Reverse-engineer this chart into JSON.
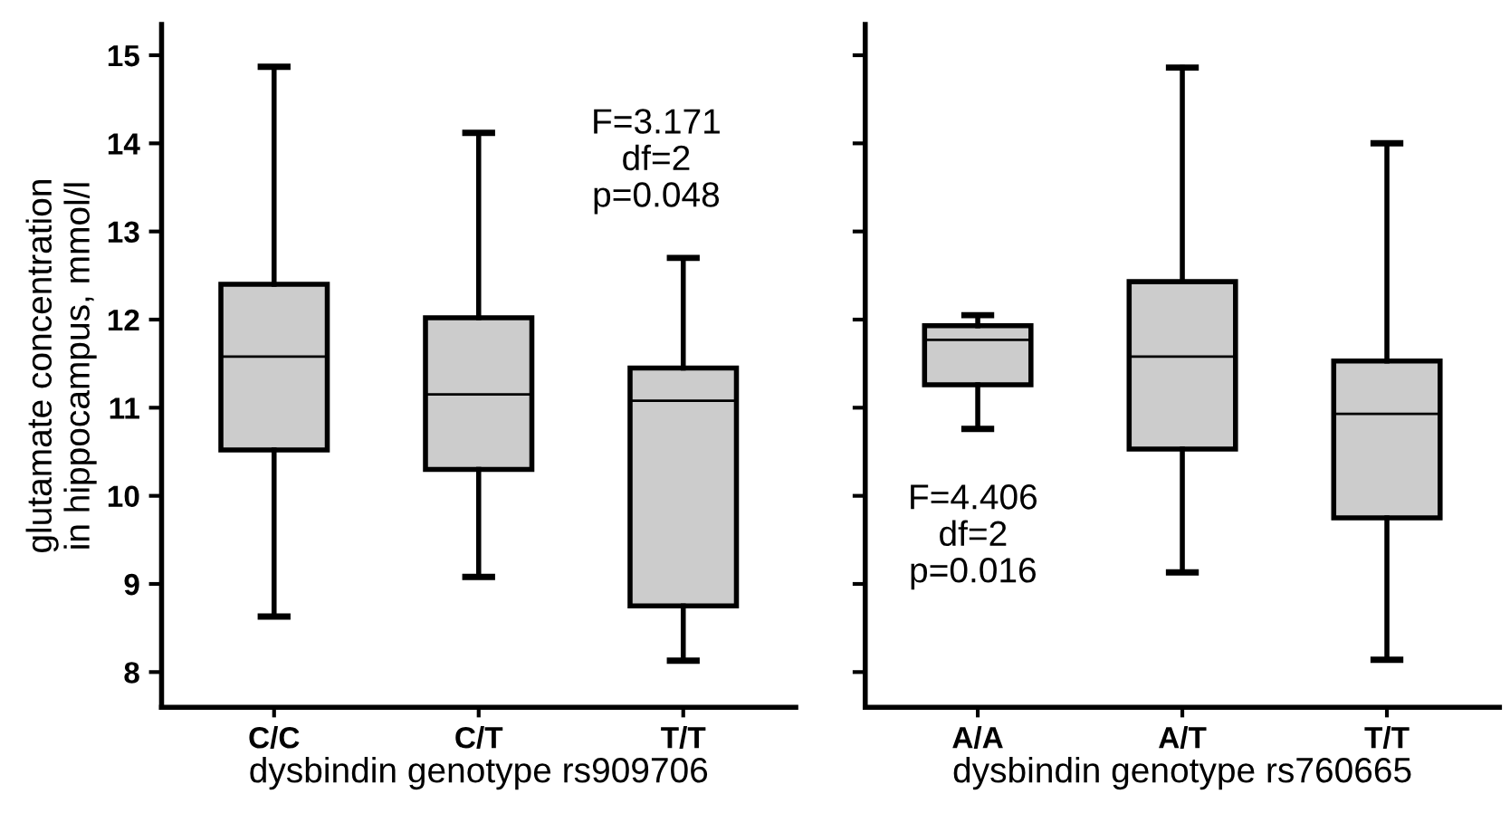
{
  "chart_data": [
    {
      "type": "box",
      "ylabel": "glutamate concentration\nin hippocampus, mmol/l",
      "xlabel": "dysbindin genotype rs909706",
      "categories": [
        "C/C",
        "C/T",
        "T/T"
      ],
      "color": "#cccccc",
      "ylim": [
        7.6,
        15.35
      ],
      "yticks": [
        8,
        9,
        10,
        11,
        12,
        13,
        14,
        15
      ],
      "annotations": [
        "F=3.171\ndf=2\np=0.048"
      ],
      "boxes": [
        {
          "low": 8.63,
          "q1": 10.52,
          "median": 11.58,
          "q3": 12.4,
          "high": 14.87
        },
        {
          "low": 9.08,
          "q1": 10.3,
          "median": 11.15,
          "q3": 12.02,
          "high": 14.12
        },
        {
          "low": 8.13,
          "q1": 8.75,
          "median": 11.08,
          "q3": 11.45,
          "high": 12.7
        }
      ]
    },
    {
      "type": "box",
      "xlabel": "dysbindin genotype rs760665",
      "categories": [
        "A/A",
        "A/T",
        "T/T"
      ],
      "color": "#cccccc",
      "ylim": [
        7.6,
        15.35
      ],
      "tick_labels": "x",
      "yticks": [
        {
          "value": 8,
          "label": null
        },
        {
          "value": 9,
          "label": null
        },
        {
          "value": 10,
          "label": null
        },
        {
          "value": 11,
          "label": null
        },
        {
          "value": 12,
          "label": null
        },
        {
          "value": 13,
          "label": null
        },
        {
          "value": 14,
          "label": null
        },
        {
          "value": 15,
          "label": null
        }
      ],
      "annotations": [
        "F=4.406\ndf=2\np=0.016"
      ],
      "boxes": [
        {
          "low": 10.76,
          "q1": 11.26,
          "median": 11.77,
          "q3": 11.93,
          "high": 12.05
        },
        {
          "low": 9.13,
          "q1": 10.53,
          "median": 11.58,
          "q3": 12.43,
          "high": 14.86
        },
        {
          "low": 8.14,
          "q1": 9.75,
          "median": 10.93,
          "q3": 11.53,
          "high": 14.0
        }
      ]
    }
  ]
}
